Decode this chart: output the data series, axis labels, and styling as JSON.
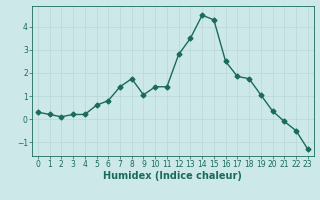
{
  "x": [
    0,
    1,
    2,
    3,
    4,
    5,
    6,
    7,
    8,
    9,
    10,
    11,
    12,
    13,
    14,
    15,
    16,
    17,
    18,
    19,
    20,
    21,
    22,
    23
  ],
  "y": [
    0.3,
    0.2,
    0.1,
    0.2,
    0.2,
    0.6,
    0.8,
    1.4,
    1.75,
    1.05,
    1.4,
    1.4,
    2.8,
    3.5,
    4.5,
    4.3,
    2.5,
    1.85,
    1.75,
    1.05,
    0.35,
    -0.1,
    -0.5,
    -1.3
  ],
  "line_color": "#1a6b5a",
  "bg_color": "#cde8e8",
  "grid_color": "#b8d8d8",
  "xlabel": "Humidex (Indice chaleur)",
  "ylim": [
    -1.6,
    4.9
  ],
  "xlim": [
    -0.5,
    23.5
  ],
  "xticks": [
    0,
    1,
    2,
    3,
    4,
    5,
    6,
    7,
    8,
    9,
    10,
    11,
    12,
    13,
    14,
    15,
    16,
    17,
    18,
    19,
    20,
    21,
    22,
    23
  ],
  "yticks": [
    -1,
    0,
    1,
    2,
    3,
    4
  ],
  "tick_fontsize": 5.5,
  "label_fontsize": 7.0,
  "linewidth": 1.0,
  "markersize": 2.5
}
